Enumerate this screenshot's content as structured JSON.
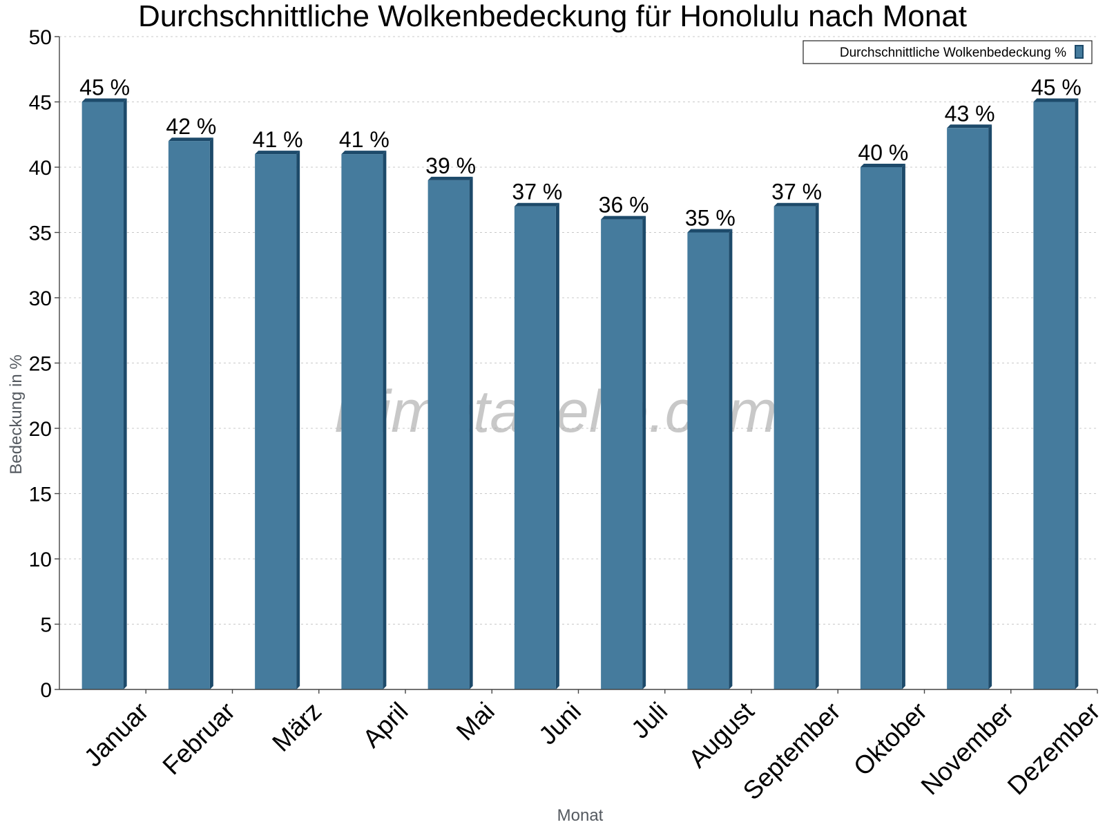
{
  "chart_data": {
    "type": "bar",
    "title": "Durchschnittliche Wolkenbedeckung für Honolulu nach Monat",
    "xlabel": "Monat",
    "ylabel": "Bedeckung in %",
    "ylim": [
      0,
      50
    ],
    "yticks": [
      0,
      5,
      10,
      15,
      20,
      25,
      30,
      35,
      40,
      45,
      50
    ],
    "grid": true,
    "legend_position": "top-right",
    "categories": [
      "Januar",
      "Februar",
      "März",
      "April",
      "Mai",
      "Juni",
      "Juli",
      "August",
      "September",
      "Oktober",
      "November",
      "Dezember"
    ],
    "series": [
      {
        "name": "Durchschnittliche Wolkenbedeckung %",
        "values": [
          45,
          42,
          41,
          41,
          39,
          37,
          36,
          35,
          37,
          40,
          43,
          45
        ],
        "labels": [
          "45 %",
          "42 %",
          "41 %",
          "41 %",
          "39 %",
          "37 %",
          "36 %",
          "35 %",
          "37 %",
          "40 %",
          "43 %",
          "45 %"
        ],
        "color": "#457b9d",
        "edge_color": "#1d4a6a"
      }
    ],
    "watermark": "klimatabelle.com"
  }
}
